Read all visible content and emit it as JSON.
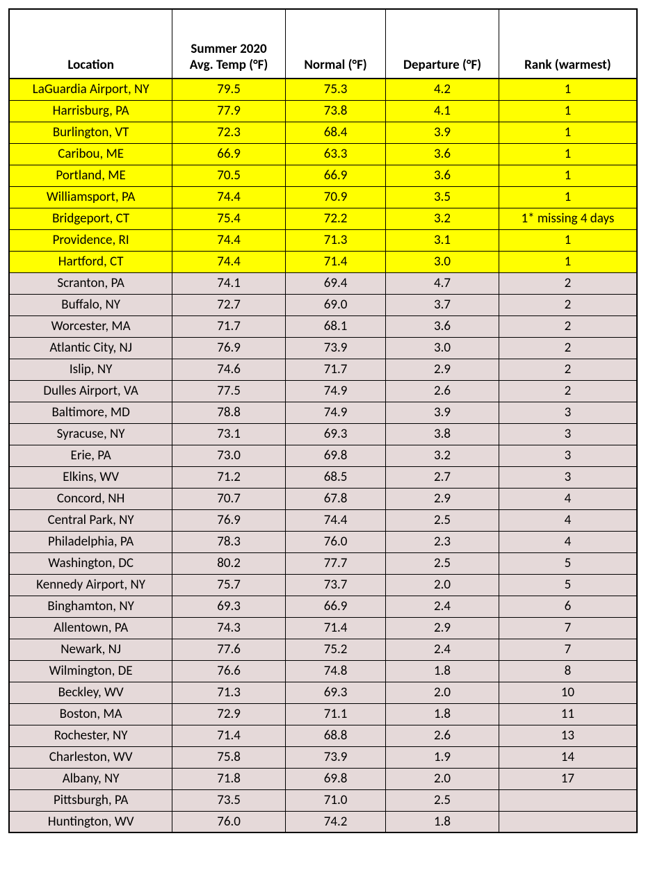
{
  "table": {
    "columns": [
      "Location",
      "Summer 2020\nAvg. Temp (°F)",
      "Normal (°F)",
      "Departure (°F)",
      "Rank (warmest)"
    ],
    "column_classes": [
      "col-location",
      "col-avg",
      "col-normal",
      "col-dep",
      "col-rank"
    ],
    "highlight_color": "#ffff00",
    "normal_color": "#e5d9d9",
    "border_color": "#000000",
    "font_family": "Calibri",
    "header_fontsize": 19,
    "cell_fontsize": 19,
    "rows": [
      {
        "cells": [
          "LaGuardia Airport, NY",
          "79.5",
          "75.3",
          "4.2",
          "1"
        ],
        "highlight": true
      },
      {
        "cells": [
          "Harrisburg, PA",
          "77.9",
          "73.8",
          "4.1",
          "1"
        ],
        "highlight": true
      },
      {
        "cells": [
          "Burlington, VT",
          "72.3",
          "68.4",
          "3.9",
          "1"
        ],
        "highlight": true
      },
      {
        "cells": [
          "Caribou, ME",
          "66.9",
          "63.3",
          "3.6",
          "1"
        ],
        "highlight": true
      },
      {
        "cells": [
          "Portland, ME",
          "70.5",
          "66.9",
          "3.6",
          "1"
        ],
        "highlight": true
      },
      {
        "cells": [
          "Williamsport, PA",
          "74.4",
          "70.9",
          "3.5",
          "1"
        ],
        "highlight": true
      },
      {
        "cells": [
          "Bridgeport, CT",
          "75.4",
          "72.2",
          "3.2",
          "1* missing 4 days"
        ],
        "highlight": true
      },
      {
        "cells": [
          "Providence, RI",
          "74.4",
          "71.3",
          "3.1",
          "1"
        ],
        "highlight": true
      },
      {
        "cells": [
          "Hartford, CT",
          "74.4",
          "71.4",
          "3.0",
          "1"
        ],
        "highlight": true
      },
      {
        "cells": [
          "Scranton, PA",
          "74.1",
          "69.4",
          "4.7",
          "2"
        ],
        "highlight": false
      },
      {
        "cells": [
          "Buffalo, NY",
          "72.7",
          "69.0",
          "3.7",
          "2"
        ],
        "highlight": false
      },
      {
        "cells": [
          "Worcester, MA",
          "71.7",
          "68.1",
          "3.6",
          "2"
        ],
        "highlight": false
      },
      {
        "cells": [
          "Atlantic City, NJ",
          "76.9",
          "73.9",
          "3.0",
          "2"
        ],
        "highlight": false
      },
      {
        "cells": [
          "Islip, NY",
          "74.6",
          "71.7",
          "2.9",
          "2"
        ],
        "highlight": false
      },
      {
        "cells": [
          "Dulles Airport, VA",
          "77.5",
          "74.9",
          "2.6",
          "2"
        ],
        "highlight": false
      },
      {
        "cells": [
          "Baltimore, MD",
          "78.8",
          "74.9",
          "3.9",
          "3"
        ],
        "highlight": false
      },
      {
        "cells": [
          "Syracuse, NY",
          "73.1",
          "69.3",
          "3.8",
          "3"
        ],
        "highlight": false
      },
      {
        "cells": [
          "Erie, PA",
          "73.0",
          "69.8",
          "3.2",
          "3"
        ],
        "highlight": false
      },
      {
        "cells": [
          "Elkins, WV",
          "71.2",
          "68.5",
          "2.7",
          "3"
        ],
        "highlight": false
      },
      {
        "cells": [
          "Concord, NH",
          "70.7",
          "67.8",
          "2.9",
          "4"
        ],
        "highlight": false
      },
      {
        "cells": [
          "Central Park, NY",
          "76.9",
          "74.4",
          "2.5",
          "4"
        ],
        "highlight": false
      },
      {
        "cells": [
          "Philadelphia, PA",
          "78.3",
          "76.0",
          "2.3",
          "4"
        ],
        "highlight": false
      },
      {
        "cells": [
          "Washington, DC",
          "80.2",
          "77.7",
          "2.5",
          "5"
        ],
        "highlight": false
      },
      {
        "cells": [
          "Kennedy Airport, NY",
          "75.7",
          "73.7",
          "2.0",
          "5"
        ],
        "highlight": false
      },
      {
        "cells": [
          "Binghamton, NY",
          "69.3",
          "66.9",
          "2.4",
          "6"
        ],
        "highlight": false
      },
      {
        "cells": [
          "Allentown, PA",
          "74.3",
          "71.4",
          "2.9",
          "7"
        ],
        "highlight": false
      },
      {
        "cells": [
          "Newark, NJ",
          "77.6",
          "75.2",
          "2.4",
          "7"
        ],
        "highlight": false
      },
      {
        "cells": [
          "Wilmington, DE",
          "76.6",
          "74.8",
          "1.8",
          "8"
        ],
        "highlight": false
      },
      {
        "cells": [
          "Beckley, WV",
          "71.3",
          "69.3",
          "2.0",
          "10"
        ],
        "highlight": false
      },
      {
        "cells": [
          "Boston, MA",
          "72.9",
          "71.1",
          "1.8",
          "11"
        ],
        "highlight": false
      },
      {
        "cells": [
          "Rochester, NY",
          "71.4",
          "68.8",
          "2.6",
          "13"
        ],
        "highlight": false
      },
      {
        "cells": [
          "Charleston, WV",
          "75.8",
          "73.9",
          "1.9",
          "14"
        ],
        "highlight": false
      },
      {
        "cells": [
          "Albany, NY",
          "71.8",
          "69.8",
          "2.0",
          "17"
        ],
        "highlight": false
      },
      {
        "cells": [
          "Pittsburgh, PA",
          "73.5",
          "71.0",
          "2.5",
          ""
        ],
        "highlight": false
      },
      {
        "cells": [
          "Huntington, WV",
          "76.0",
          "74.2",
          "1.8",
          ""
        ],
        "highlight": false
      }
    ]
  }
}
